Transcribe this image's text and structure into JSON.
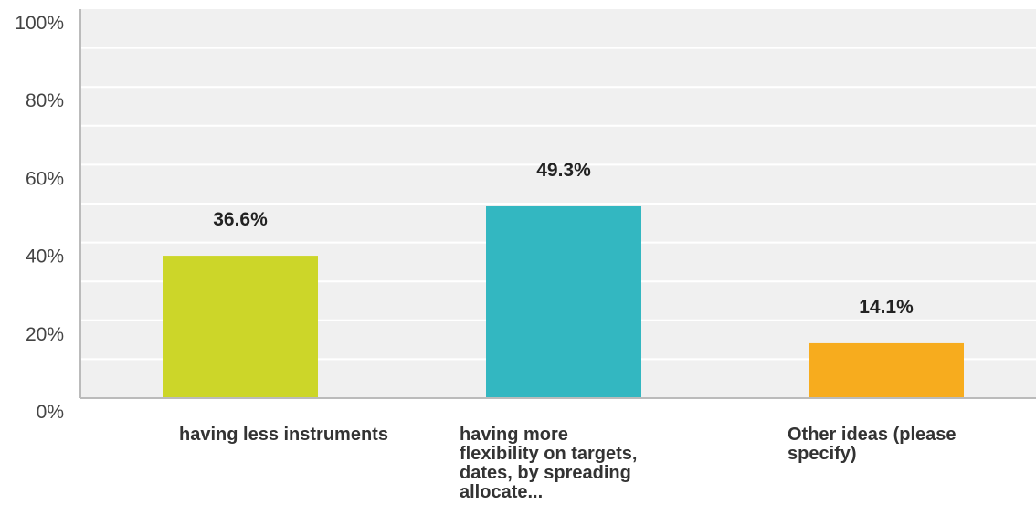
{
  "chart_data": {
    "type": "bar",
    "categories": [
      "having less instruments",
      "having more flexibility on targets, dates, by spreading allocate...",
      "Other ideas (please specify)"
    ],
    "values": [
      36.6,
      49.3,
      14.1
    ],
    "data_labels": [
      "36.6%",
      "49.3%",
      "14.1%"
    ],
    "colors": [
      "#ccd629",
      "#33b7c1",
      "#f7ac1e"
    ],
    "yticks": [
      "0%",
      "20%",
      "40%",
      "60%",
      "80%",
      "100%"
    ],
    "ylim": [
      0,
      100
    ],
    "grid": true,
    "plot_background": "#f0f0f0",
    "title": "",
    "xlabel": "",
    "ylabel": ""
  }
}
